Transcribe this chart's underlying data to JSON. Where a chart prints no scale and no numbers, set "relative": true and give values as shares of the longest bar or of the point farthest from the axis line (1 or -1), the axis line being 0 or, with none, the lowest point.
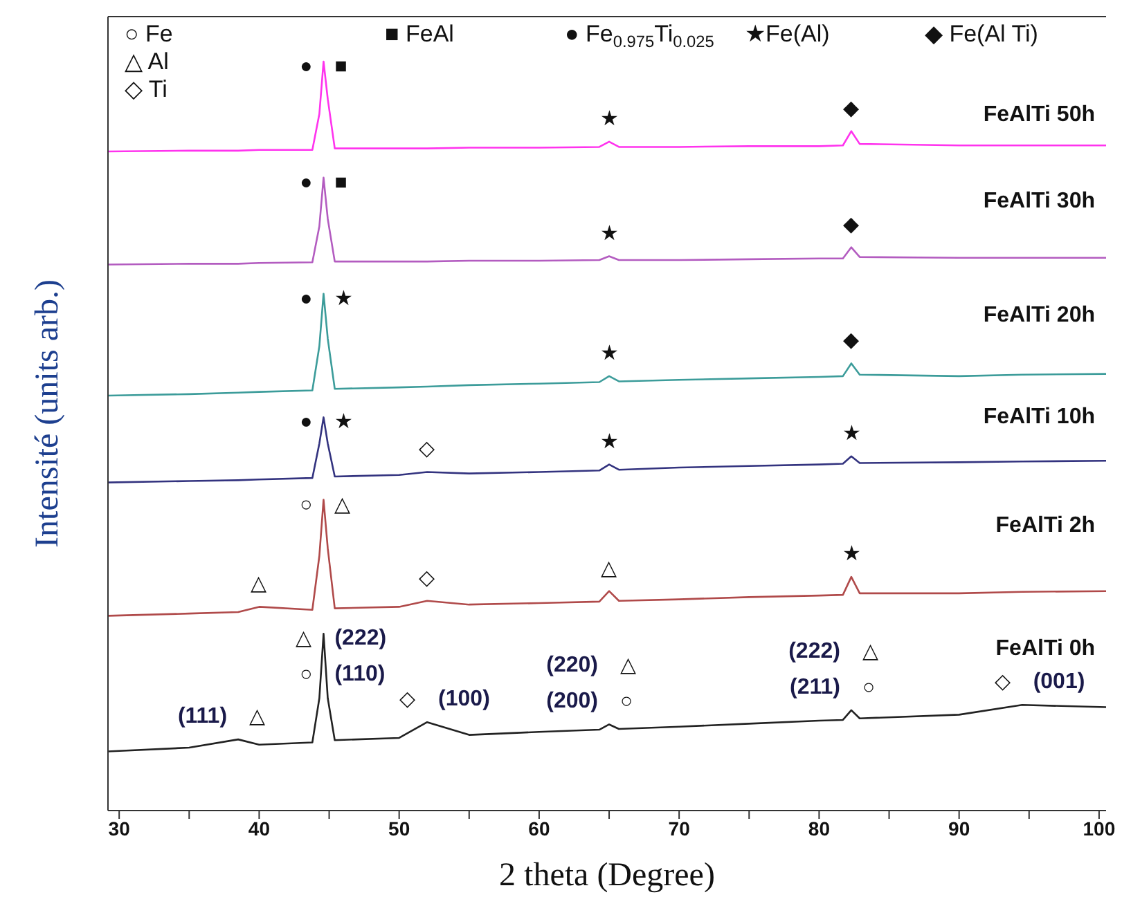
{
  "chart_data": {
    "type": "line",
    "relative": true,
    "marker": "none",
    "xlabel": "2 theta (Degree)",
    "ylabel": "Intensité (units arb.)",
    "xlim": [
      29.2,
      100.5
    ],
    "xticks": [
      30,
      {
        "value": 35,
        "label": null
      },
      40,
      {
        "value": 45,
        "label": null
      },
      50,
      {
        "value": 55,
        "label": null
      },
      60,
      {
        "value": 65,
        "label": null
      },
      70,
      {
        "value": 75,
        "label": null
      },
      80,
      {
        "value": 85,
        "label": null
      },
      90,
      {
        "value": 95,
        "label": null
      },
      100
    ],
    "x": [
      29.2,
      35,
      38.5,
      40,
      43.8,
      44.3,
      44.6,
      44.9,
      45.4,
      50,
      52,
      55,
      60,
      64.3,
      65,
      65.7,
      70,
      75,
      80,
      81.7,
      82.3,
      82.9,
      90,
      94.5,
      100.5
    ],
    "series": [
      {
        "name": "FeAlTi 50h",
        "color": "#ff33ee",
        "values": [
          0.88,
          0.881,
          0.881,
          0.882,
          0.882,
          0.93,
          1.0,
          0.95,
          0.884,
          0.884,
          0.884,
          0.885,
          0.885,
          0.886,
          0.893,
          0.886,
          0.886,
          0.887,
          0.887,
          0.888,
          0.907,
          0.89,
          0.888,
          0.888,
          0.888
        ]
      },
      {
        "name": "FeAlTi 30h",
        "color": "#b35cc0",
        "values": [
          0.729,
          0.73,
          0.73,
          0.731,
          0.732,
          0.78,
          0.845,
          0.79,
          0.733,
          0.733,
          0.733,
          0.734,
          0.734,
          0.735,
          0.74,
          0.735,
          0.735,
          0.736,
          0.737,
          0.737,
          0.752,
          0.739,
          0.738,
          0.738,
          0.738
        ]
      },
      {
        "name": "FeAlTi 20h",
        "color": "#3c9c9a",
        "values": [
          0.554,
          0.556,
          0.558,
          0.559,
          0.561,
          0.62,
          0.69,
          0.63,
          0.563,
          0.565,
          0.566,
          0.568,
          0.57,
          0.572,
          0.58,
          0.573,
          0.575,
          0.577,
          0.579,
          0.58,
          0.597,
          0.582,
          0.58,
          0.582,
          0.583
        ]
      },
      {
        "name": "FeAlTi 10h",
        "color": "#33337f",
        "values": [
          0.438,
          0.44,
          0.441,
          0.442,
          0.444,
          0.49,
          0.525,
          0.49,
          0.446,
          0.448,
          0.452,
          0.45,
          0.452,
          0.454,
          0.462,
          0.455,
          0.458,
          0.46,
          0.462,
          0.463,
          0.473,
          0.464,
          0.465,
          0.466,
          0.467
        ]
      },
      {
        "name": "FeAlTi 2h",
        "color": "#b04a4a",
        "values": [
          0.26,
          0.263,
          0.265,
          0.272,
          0.268,
          0.34,
          0.415,
          0.35,
          0.27,
          0.272,
          0.28,
          0.275,
          0.277,
          0.279,
          0.293,
          0.28,
          0.282,
          0.285,
          0.287,
          0.288,
          0.312,
          0.29,
          0.29,
          0.292,
          0.293
        ]
      },
      {
        "name": "FeAlTi 0h",
        "color": "#222222",
        "values": [
          0.079,
          0.084,
          0.095,
          0.088,
          0.091,
          0.15,
          0.236,
          0.15,
          0.094,
          0.097,
          0.118,
          0.101,
          0.105,
          0.108,
          0.115,
          0.109,
          0.112,
          0.116,
          0.12,
          0.121,
          0.134,
          0.123,
          0.128,
          0.141,
          0.138
        ]
      }
    ],
    "annotations": [
      "○ Fe",
      "△ Al",
      "◇ Ti",
      "■ FeAl",
      "● Fe$_{0.975}$Ti$_{0.025}$",
      "★Fe(Al)",
      "◆ Fe(Al Ti)",
      {
        "text": "●",
        "x": 44.6,
        "y": 1.0
      },
      {
        "text": "■",
        "x": 44.6,
        "y": 1.0
      },
      {
        "text": "★",
        "x": 65,
        "y": 0.893
      },
      {
        "text": "◆",
        "x": 82.3,
        "y": 0.907
      },
      {
        "text": "●",
        "x": 44.6,
        "y": 0.845
      },
      {
        "text": "■",
        "x": 44.6,
        "y": 0.845
      },
      {
        "text": "★",
        "x": 65,
        "y": 0.74
      },
      {
        "text": "◆",
        "x": 82.3,
        "y": 0.752
      },
      {
        "text": "●",
        "x": 44.6,
        "y": 0.69
      },
      {
        "text": "★",
        "x": 44.6,
        "y": 0.69
      },
      {
        "text": "★",
        "x": 65,
        "y": 0.58
      },
      {
        "text": "◆",
        "x": 82.3,
        "y": 0.597
      },
      {
        "text": "●",
        "x": 44.6,
        "y": 0.525
      },
      {
        "text": "★",
        "x": 44.6,
        "y": 0.525
      },
      {
        "text": "◇",
        "x": 52,
        "y": 0.452
      },
      {
        "text": "★",
        "x": 65,
        "y": 0.462
      },
      {
        "text": "★",
        "x": 82.3,
        "y": 0.473
      },
      {
        "text": "○",
        "x": 44.6,
        "y": 0.415
      },
      {
        "text": "△",
        "x": 44.6,
        "y": 0.415
      },
      {
        "text": "△",
        "x": 40,
        "y": 0.272
      },
      {
        "text": "◇",
        "x": 52,
        "y": 0.28
      },
      {
        "text": "△",
        "x": 65,
        "y": 0.293
      },
      {
        "text": "★",
        "x": 82.3,
        "y": 0.312
      },
      {
        "text": "△",
        "x": 44.6,
        "y": 0.236
      },
      {
        "text": "(222)",
        "x": 44.6,
        "y": 0.236
      },
      {
        "text": "○",
        "x": 44.6,
        "y": 0.236
      },
      {
        "text": "(110)",
        "x": 44.6,
        "y": 0.236
      },
      {
        "text": "(111)",
        "x": 38.5,
        "y": 0.095
      },
      {
        "text": "△",
        "x": 38.5,
        "y": 0.095
      },
      {
        "text": "◇",
        "x": 52,
        "y": 0.118
      },
      {
        "text": "(100)",
        "x": 52,
        "y": 0.118
      },
      {
        "text": "(220)",
        "x": 65,
        "y": 0.115
      },
      {
        "text": "△",
        "x": 65,
        "y": 0.115
      },
      {
        "text": "(200)",
        "x": 65,
        "y": 0.115
      },
      {
        "text": "○",
        "x": 65,
        "y": 0.115
      },
      {
        "text": "(222)",
        "x": 82.3,
        "y": 0.134
      },
      {
        "text": "△",
        "x": 82.3,
        "y": 0.134
      },
      {
        "text": "(211)",
        "x": 82.3,
        "y": 0.134
      },
      {
        "text": "○",
        "x": 82.3,
        "y": 0.134
      },
      {
        "text": "◇",
        "x": 94.5,
        "y": 0.141
      },
      {
        "text": "(001)",
        "x": 94.5,
        "y": 0.141
      }
    ]
  }
}
